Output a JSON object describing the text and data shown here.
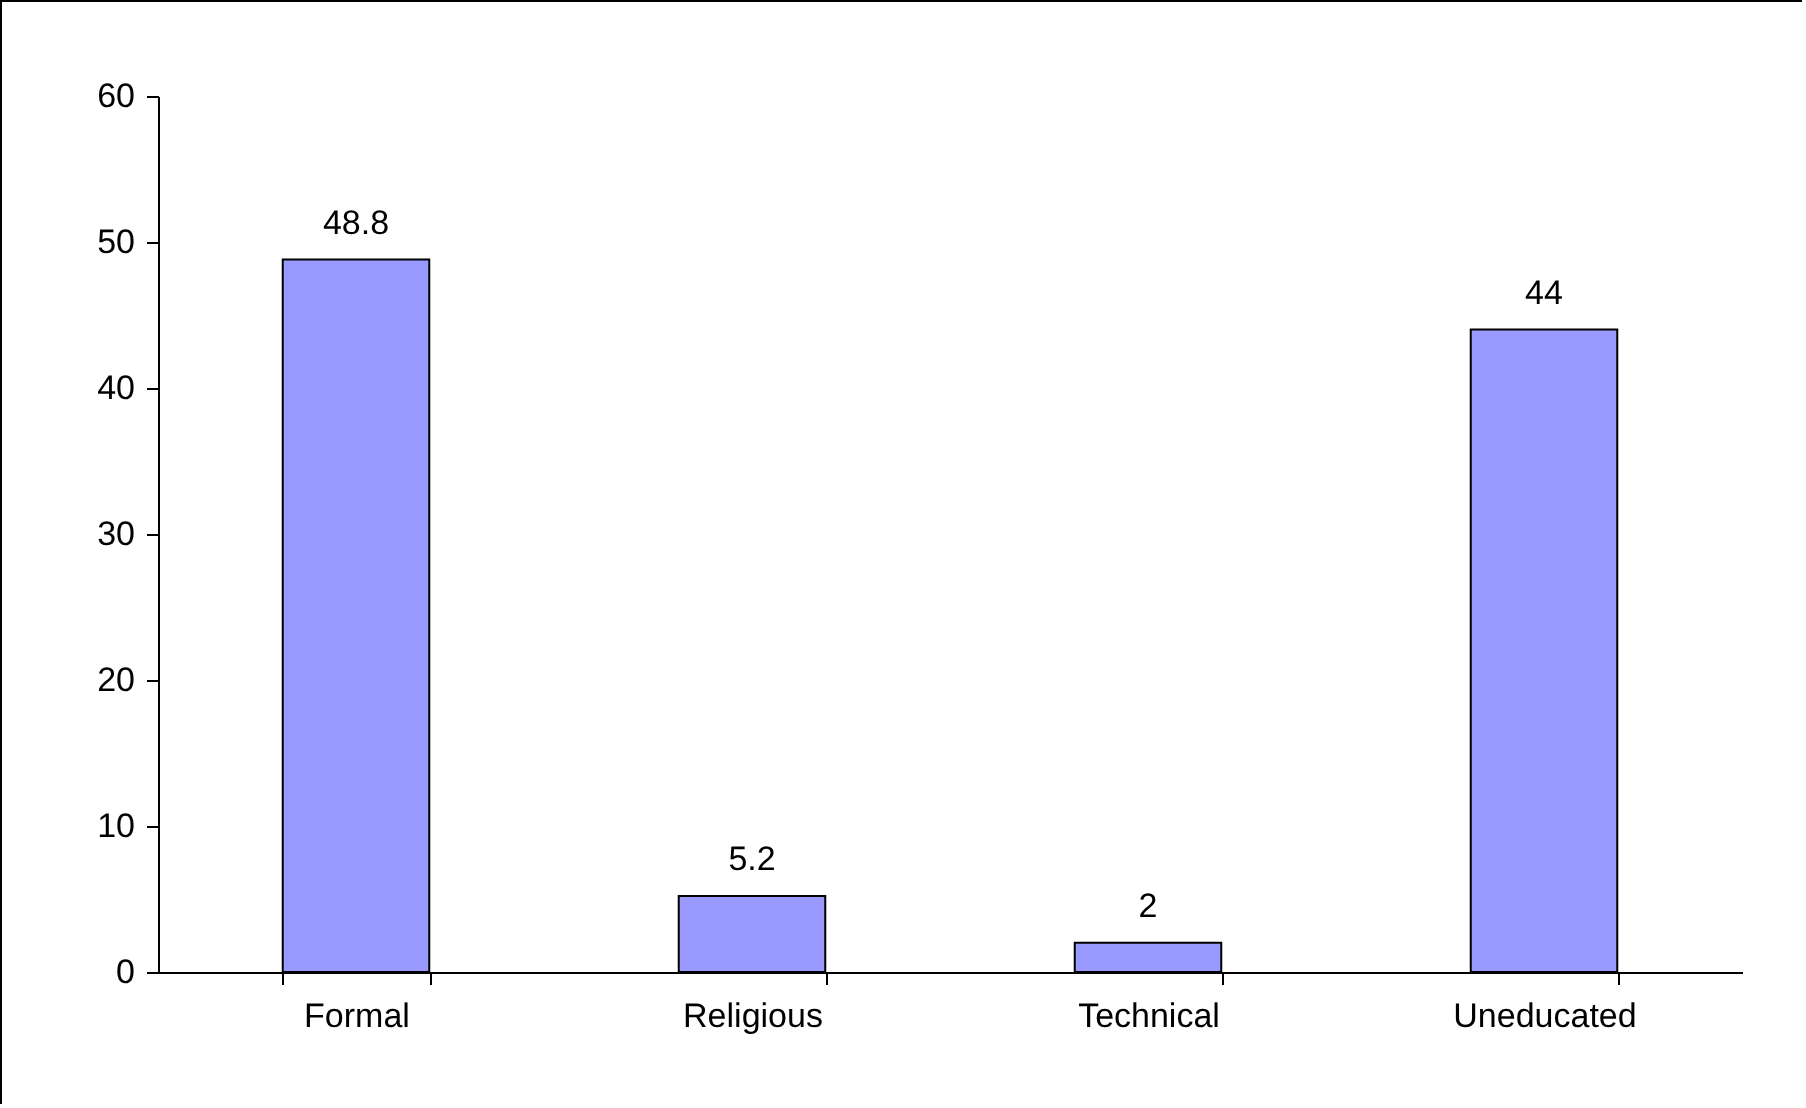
{
  "chart_data": {
    "type": "bar",
    "categories": [
      "Formal",
      "Religious",
      "Technical",
      "Uneducated"
    ],
    "values": [
      48.8,
      5.2,
      2,
      44
    ],
    "color": "#9999ff",
    "ylim": [
      0,
      60
    ],
    "yticks": [
      0,
      10,
      20,
      30,
      40,
      50,
      60
    ],
    "grid": false,
    "data_labels": true
  }
}
